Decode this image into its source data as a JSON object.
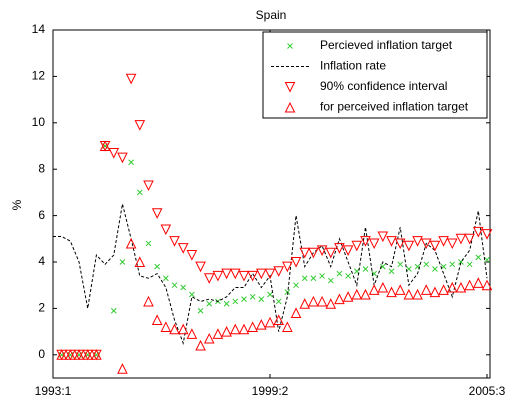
{
  "chart_data": {
    "type": "line",
    "title": "Spain",
    "y_label": "%",
    "categories": [
      "1993:1",
      null,
      null,
      null,
      null,
      null,
      null,
      null,
      null,
      null,
      null,
      null,
      null,
      null,
      null,
      null,
      null,
      null,
      null,
      null,
      null,
      null,
      null,
      null,
      null,
      "1999:2",
      null,
      null,
      null,
      null,
      null,
      null,
      null,
      null,
      null,
      null,
      null,
      null,
      null,
      null,
      null,
      null,
      null,
      null,
      null,
      null,
      null,
      null,
      null,
      null,
      "2005:3"
    ],
    "ylim": [
      -1,
      14
    ],
    "yticks": [
      0,
      2,
      4,
      6,
      8,
      10,
      12,
      14
    ],
    "legend": "upper right",
    "series": [
      {
        "name": "Percieved inflation target",
        "color": "#33cc33",
        "marker": "x",
        "values": [
          null,
          0,
          0,
          0,
          0,
          0,
          9.0,
          1.9,
          4.0,
          8.3,
          7.0,
          4.8,
          3.8,
          3.3,
          3.0,
          2.9,
          2.6,
          1.9,
          2.2,
          2.3,
          2.2,
          2.3,
          2.4,
          2.5,
          2.4,
          2.6,
          2.3,
          2.7,
          3.0,
          3.3,
          3.3,
          3.4,
          3.2,
          3.5,
          3.4,
          3.6,
          3.7,
          3.5,
          3.8,
          3.6,
          3.9,
          3.7,
          3.8,
          3.9,
          3.7,
          3.8,
          3.9,
          4.0,
          3.9,
          4.2,
          4.1
        ]
      },
      {
        "name": "Inflation rate",
        "color": "#000000",
        "marker": "dashed-line",
        "values": [
          5.1,
          5.1,
          4.9,
          4.0,
          2.0,
          4.3,
          3.9,
          4.3,
          6.5,
          5.0,
          3.4,
          3.3,
          3.5,
          2.9,
          1.5,
          0.5,
          2.5,
          2.3,
          2.4,
          2.3,
          2.5,
          2.9,
          2.9,
          3.5,
          2.9,
          3.4,
          1.0,
          2.5,
          6.0,
          3.8,
          4.4,
          4.7,
          3.8,
          5.0,
          4.0,
          3.0,
          5.5,
          3.0,
          4.0,
          3.8,
          5.5,
          3.0,
          3.5,
          4.8,
          4.5,
          3.5,
          2.5,
          4.0,
          4.5,
          6.2,
          3.3
        ]
      },
      {
        "name": "90% confidence interval",
        "color": "#ff0000",
        "marker": "triangle-down",
        "values": [
          null,
          0,
          0,
          0,
          0,
          0,
          9.0,
          8.7,
          8.5,
          11.9,
          9.9,
          7.3,
          6.1,
          5.4,
          4.9,
          4.6,
          4.3,
          3.8,
          3.3,
          3.4,
          3.5,
          3.5,
          3.4,
          3.4,
          3.5,
          3.5,
          3.6,
          3.8,
          4.0,
          4.4,
          4.4,
          4.5,
          4.4,
          4.6,
          4.5,
          4.7,
          4.9,
          4.8,
          5.1,
          4.9,
          4.8,
          4.7,
          4.9,
          4.8,
          4.7,
          4.9,
          4.8,
          5.0,
          5.0,
          5.3,
          5.2
        ]
      },
      {
        "name": "for perceived inflation target",
        "color": "#ff0000",
        "marker": "triangle-up",
        "values": [
          null,
          0,
          0,
          0,
          0,
          0,
          9.0,
          null,
          -0.6,
          4.8,
          4.0,
          2.3,
          1.5,
          1.2,
          1.1,
          1.1,
          0.9,
          0.4,
          0.7,
          0.9,
          1.0,
          1.1,
          1.1,
          1.2,
          1.3,
          1.4,
          1.5,
          1.2,
          1.8,
          2.2,
          2.3,
          2.3,
          2.2,
          2.4,
          2.5,
          2.6,
          2.6,
          2.8,
          2.9,
          2.7,
          2.8,
          2.6,
          2.6,
          2.8,
          2.7,
          2.8,
          2.9,
          2.9,
          3.0,
          3.1,
          3.0
        ]
      }
    ]
  }
}
